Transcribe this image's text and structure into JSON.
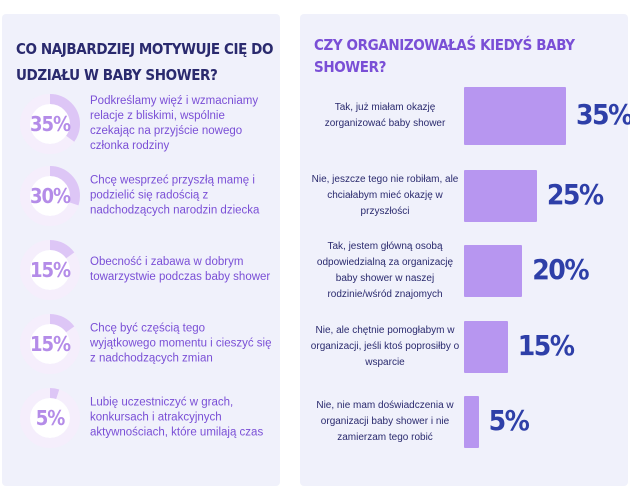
{
  "left": {
    "title": "CO NAJBARDZIEJ MOTYWUJE CIĘ DO UDZIAŁU W BABY SHOWER?",
    "items": [
      {
        "pct": "35%",
        "value": 35,
        "text": "Podkreślamy więź i wzmacniamy relacje z bliskimi, wspólnie czekając na przyjście nowego członka rodziny"
      },
      {
        "pct": "30%",
        "value": 30,
        "text": "Chcę wesprzeć przyszłą mamę i podzielić się radością z nadchodzących narodzin dziecka"
      },
      {
        "pct": "15%",
        "value": 15,
        "text": "Obecność i zabawa w dobrym towarzystwie podczas baby shower"
      },
      {
        "pct": "15%",
        "value": 15,
        "text": "Chcę być częścią tego wyjątkowego momentu i cieszyć się z nadchodzących zmian"
      },
      {
        "pct": "5%",
        "value": 5,
        "text": "Lubię uczestniczyć w grach, konkursach i atrakcyjnych aktywnościach, które umilają czas"
      }
    ]
  },
  "chart_data": {
    "type": "bar",
    "title": "CZY ORGANIZOWAŁAŚ KIEDYŚ BABY SHOWER?",
    "categories": [
      "Tak, już miałam okazję zorganizować baby shower",
      "Nie, jeszcze tego nie robiłam, ale chciałabym mieć okazję w przyszłości",
      "Tak, jestem główną osobą odpowiedzialną za organizację baby shower w naszej rodzinie/wśród znajomych",
      "Nie, ale chętnie pomogłabym w organizacji, jeśli ktoś poprosiłby o wsparcie",
      "Nie, nie mam doświadczenia w organizacji baby shower i nie zamierzam tego robić"
    ],
    "values": [
      35,
      25,
      20,
      15,
      5
    ],
    "value_labels": [
      "35%",
      "25%",
      "20%",
      "15%",
      "5%"
    ],
    "xlabel": "",
    "ylabel": "",
    "orientation": "horizontal"
  },
  "colors": {
    "panel_bg": "#f0f1fb",
    "donut_track": "#f5eefc",
    "donut_fill": "#ddc6f6",
    "donut_inner": "#ffffff",
    "bar": "#b796f0",
    "value_text": "#2e3fa8",
    "title_left": "#2a2a6e",
    "title_right": "#7a4fd6"
  }
}
